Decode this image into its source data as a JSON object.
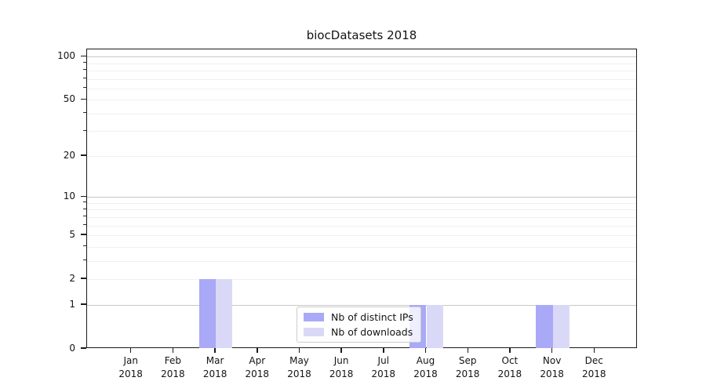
{
  "figure": {
    "title": "biocDatasets 2018"
  },
  "chart_data": {
    "type": "bar",
    "title": "biocDatasets 2018",
    "xlabel": "",
    "ylabel": "",
    "yscale": "log1p",
    "ylim": [
      0,
      112
    ],
    "grid": true,
    "legend_position": "inside-bottom-center",
    "categories": [
      {
        "month": "Jan",
        "year": "2018"
      },
      {
        "month": "Feb",
        "year": "2018"
      },
      {
        "month": "Mar",
        "year": "2018"
      },
      {
        "month": "Apr",
        "year": "2018"
      },
      {
        "month": "May",
        "year": "2018"
      },
      {
        "month": "Jun",
        "year": "2018"
      },
      {
        "month": "Jul",
        "year": "2018"
      },
      {
        "month": "Aug",
        "year": "2018"
      },
      {
        "month": "Sep",
        "year": "2018"
      },
      {
        "month": "Oct",
        "year": "2018"
      },
      {
        "month": "Nov",
        "year": "2018"
      },
      {
        "month": "Dec",
        "year": "2018"
      }
    ],
    "series": [
      {
        "name": "Nb of distinct IPs",
        "color": "#a9a9f7",
        "values": [
          0,
          0,
          2,
          0,
          0,
          0,
          0,
          1,
          0,
          0,
          1,
          0
        ]
      },
      {
        "name": "Nb of downloads",
        "color": "#d9d9f7",
        "values": [
          0,
          0,
          2,
          0,
          0,
          0,
          0,
          1,
          0,
          0,
          1,
          0
        ]
      }
    ],
    "yticks": [
      0,
      1,
      2,
      5,
      10,
      20,
      50,
      100
    ],
    "major_gridlines": [
      1,
      10,
      100
    ],
    "minor_gridlines": [
      2,
      3,
      4,
      5,
      6,
      7,
      8,
      9,
      20,
      30,
      40,
      50,
      60,
      70,
      80,
      90
    ]
  }
}
